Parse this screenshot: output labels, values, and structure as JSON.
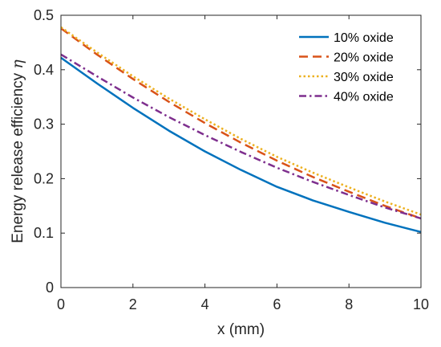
{
  "chart_data": {
    "type": "line",
    "xlabel": "x (mm)",
    "ylabel_text": "Energy release efficiency ",
    "ylabel_symbol": "η",
    "xlim": [
      0,
      10
    ],
    "ylim": [
      0,
      0.5
    ],
    "xticks": [
      0,
      2,
      4,
      6,
      8,
      10
    ],
    "yticks": [
      0,
      0.1,
      0.2,
      0.3,
      0.4,
      0.5
    ],
    "x": [
      0,
      1,
      2,
      3,
      4,
      5,
      6,
      7,
      8,
      9,
      10
    ],
    "legend_position": "top-right",
    "grid": false,
    "series": [
      {
        "name": "10% oxide",
        "color": "#0072BD",
        "dash": "solid",
        "values": [
          0.422,
          0.375,
          0.33,
          0.288,
          0.25,
          0.216,
          0.185,
          0.16,
          0.139,
          0.119,
          0.102
        ]
      },
      {
        "name": "20% oxide",
        "color": "#D95319",
        "dash": "dashed",
        "values": [
          0.476,
          0.428,
          0.383,
          0.341,
          0.302,
          0.266,
          0.233,
          0.203,
          0.176,
          0.15,
          0.127
        ]
      },
      {
        "name": "30% oxide",
        "color": "#EDB120",
        "dash": "dotted",
        "values": [
          0.478,
          0.432,
          0.388,
          0.347,
          0.309,
          0.273,
          0.24,
          0.211,
          0.184,
          0.158,
          0.134
        ]
      },
      {
        "name": "40% oxide",
        "color": "#7E2F8E",
        "dash": "dashdot",
        "values": [
          0.428,
          0.388,
          0.349,
          0.313,
          0.28,
          0.249,
          0.22,
          0.194,
          0.17,
          0.147,
          0.127
        ]
      }
    ]
  }
}
